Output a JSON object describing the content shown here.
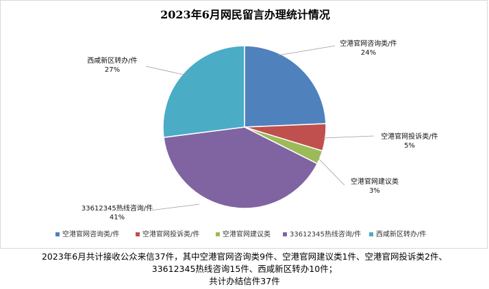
{
  "chart_data": {
    "type": "pie",
    "title": "2023年6月网民留言办理统计情况",
    "categories": [
      "空港官网咨询类/件",
      "空港官网投诉类/件",
      "空港官网建议类",
      "33612345热线咨询/件",
      "西咸新区转办/件"
    ],
    "values": [
      9,
      2,
      1,
      15,
      10
    ],
    "percent_labels": [
      "24%",
      "5%",
      "3%",
      "41%",
      "27%"
    ],
    "colors": [
      "#4f81bd",
      "#c0504d",
      "#9bbb59",
      "#8064a2",
      "#4bacc6"
    ],
    "legend_position": "bottom"
  },
  "note": {
    "line1": "2023年6月共计接收公众来信37件，其中空港官网咨询类9件、空港官网建议类1件、空港官网投诉类2件、",
    "line2": "33612345热线咨询15件、西咸新区转办10件；",
    "line3": "共计办结信件37件"
  }
}
